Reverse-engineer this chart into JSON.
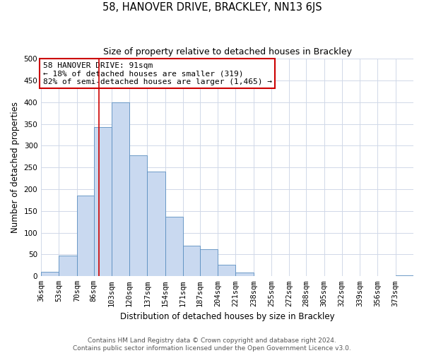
{
  "title": "58, HANOVER DRIVE, BRACKLEY, NN13 6JS",
  "subtitle": "Size of property relative to detached houses in Brackley",
  "xlabel": "Distribution of detached houses by size in Brackley",
  "ylabel": "Number of detached properties",
  "footer_line1": "Contains HM Land Registry data © Crown copyright and database right 2024.",
  "footer_line2": "Contains public sector information licensed under the Open Government Licence v3.0.",
  "bin_labels": [
    "36sqm",
    "53sqm",
    "70sqm",
    "86sqm",
    "103sqm",
    "120sqm",
    "137sqm",
    "154sqm",
    "171sqm",
    "187sqm",
    "204sqm",
    "221sqm",
    "238sqm",
    "255sqm",
    "272sqm",
    "288sqm",
    "305sqm",
    "322sqm",
    "339sqm",
    "356sqm",
    "373sqm"
  ],
  "bar_values": [
    10,
    47,
    185,
    343,
    400,
    278,
    240,
    136,
    70,
    62,
    26,
    8,
    0,
    0,
    0,
    0,
    0,
    0,
    0,
    0,
    2
  ],
  "bar_color": "#c9d9f0",
  "bar_edge_color": "#5a8ec0",
  "annotation_box_text_line1": "58 HANOVER DRIVE: 91sqm",
  "annotation_box_text_line2": "← 18% of detached houses are smaller (319)",
  "annotation_box_text_line3": "82% of semi-detached houses are larger (1,465) →",
  "annotation_box_color": "#ffffff",
  "annotation_box_edge_color": "#cc0000",
  "vline_x": 91,
  "vline_color": "#cc0000",
  "bin_edges": [
    36,
    53,
    70,
    86,
    103,
    120,
    137,
    154,
    171,
    187,
    204,
    221,
    238,
    255,
    272,
    288,
    305,
    322,
    339,
    356,
    373,
    390
  ],
  "ylim": [
    0,
    500
  ],
  "yticks": [
    0,
    50,
    100,
    150,
    200,
    250,
    300,
    350,
    400,
    450,
    500
  ],
  "background_color": "#ffffff",
  "grid_color": "#d0d8e8",
  "title_fontsize": 10.5,
  "subtitle_fontsize": 9,
  "axis_label_fontsize": 8.5,
  "tick_fontsize": 7.5,
  "annotation_fontsize": 8,
  "footer_fontsize": 6.5
}
